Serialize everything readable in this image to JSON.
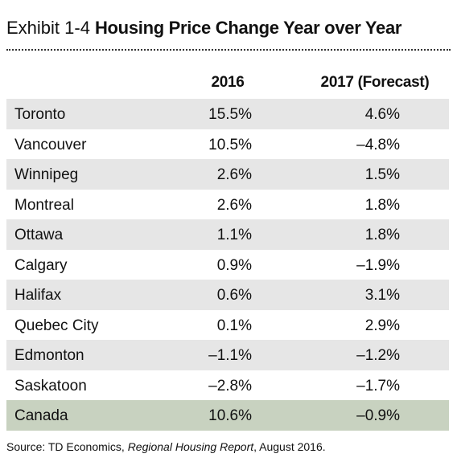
{
  "header": {
    "exhibit": "Exhibit 1-4",
    "title": "Housing Price Change Year over Year"
  },
  "table": {
    "columns": [
      "2016",
      "2017 (Forecast)"
    ],
    "rows": [
      [
        "Toronto",
        "15.5%",
        "4.6%"
      ],
      [
        "Vancouver",
        "10.5%",
        "–4.8%"
      ],
      [
        "Winnipeg",
        "2.6%",
        "1.5%"
      ],
      [
        "Montreal",
        "2.6%",
        "1.8%"
      ],
      [
        "Ottawa",
        "1.1%",
        "1.8%"
      ],
      [
        "Calgary",
        "0.9%",
        "–1.9%"
      ],
      [
        "Halifax",
        "0.6%",
        "3.1%"
      ],
      [
        "Quebec City",
        "0.1%",
        "2.9%"
      ],
      [
        "Edmonton",
        "–1.1%",
        "–1.2%"
      ],
      [
        "Saskatoon",
        "–2.8%",
        "–1.7%"
      ],
      [
        "Canada",
        "10.6%",
        "–0.9%"
      ]
    ]
  },
  "source": {
    "prefix": "Source: TD Economics, ",
    "report": "Regional Housing Report",
    "suffix": ", August 2016."
  }
}
